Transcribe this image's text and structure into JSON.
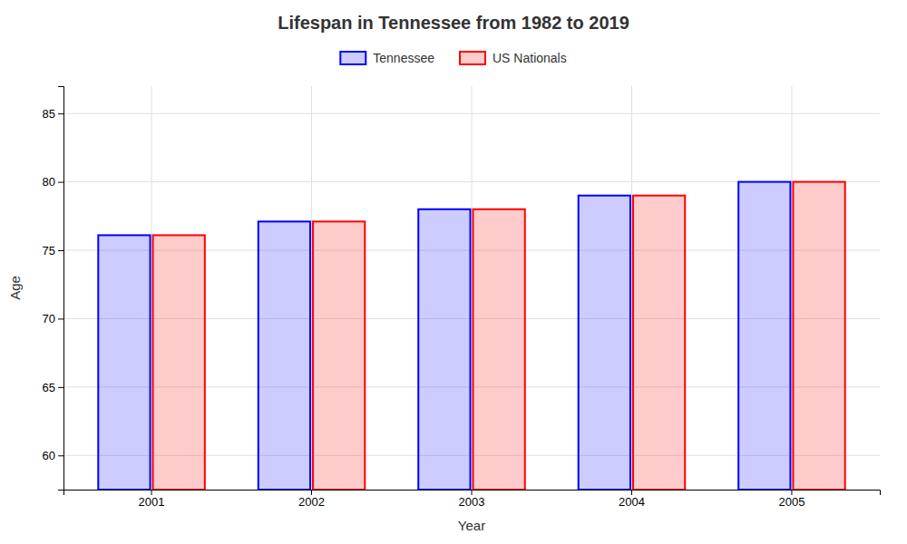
{
  "chart_data": {
    "type": "bar",
    "title": "Lifespan in Tennessee from 1982 to 2019",
    "x_label": "Year",
    "y_label": "Age",
    "categories": [
      "2001",
      "2002",
      "2003",
      "2004",
      "2005"
    ],
    "series": [
      {
        "name": "Tennessee",
        "color": "#0000ff",
        "values": [
          76.1,
          77.1,
          78.0,
          79.0,
          80.0
        ]
      },
      {
        "name": "US Nationals",
        "color": "#ff0000",
        "values": [
          76.1,
          77.1,
          78.0,
          79.0,
          80.0
        ]
      }
    ],
    "ylim": [
      57.5,
      87
    ],
    "yticks": [
      60,
      65,
      70,
      75,
      80,
      85
    ],
    "grid": true,
    "legend": "top"
  }
}
